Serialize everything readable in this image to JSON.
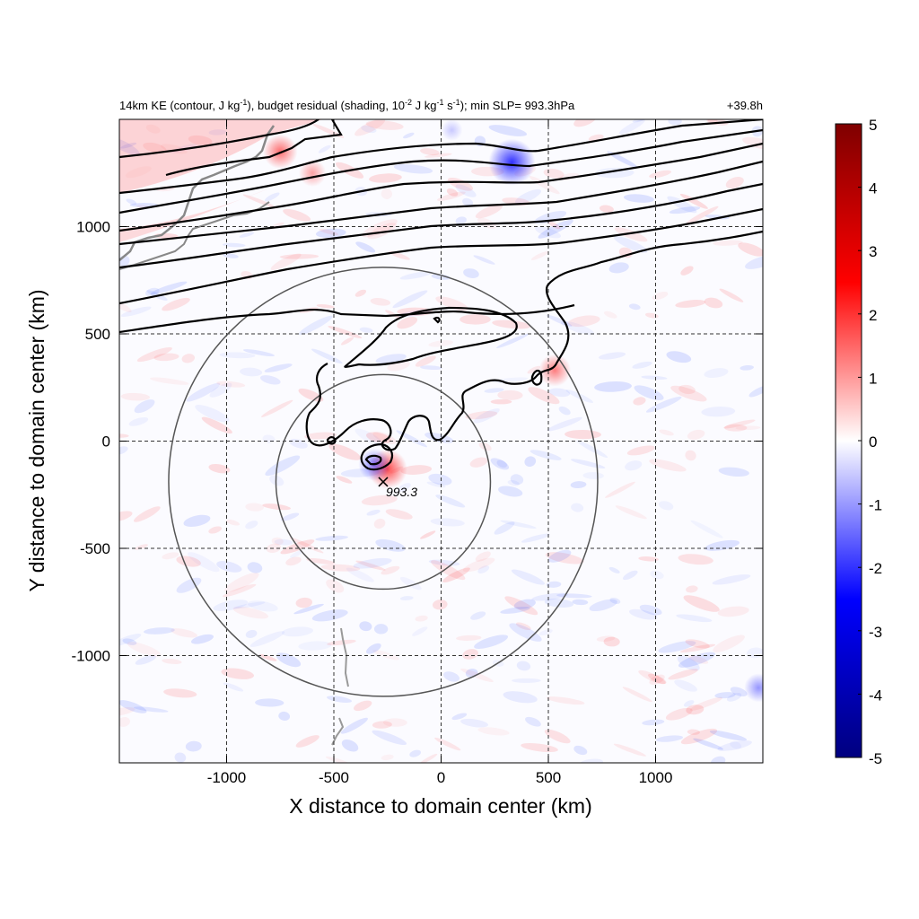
{
  "title": {
    "left_parts": [
      "14km KE (contour, J kg",
      "-1",
      "), budget residual (shading, 10",
      "-2",
      " J kg",
      "-1",
      " s",
      "-1",
      "); min SLP= 993.3hPa"
    ],
    "right": "+39.8h"
  },
  "chart_data": {
    "type": "heatmap",
    "xlabel": "X distance to domain center (km)",
    "ylabel": "Y distance to domain center (km)",
    "xlim": [
      -1500,
      1500
    ],
    "ylim": [
      -1500,
      1500
    ],
    "x_ticks": [
      -1000,
      -500,
      0,
      500,
      1000
    ],
    "y_ticks": [
      1000,
      500,
      0,
      -500,
      -1000
    ],
    "x_tick_labels": [
      "-1000",
      "-500",
      "0",
      "500",
      "1000"
    ],
    "y_tick_labels": [
      "1000",
      "500",
      "0",
      "-500",
      "-1000"
    ],
    "grid": "dashed",
    "colorbar": {
      "range": [
        -5,
        5
      ],
      "ticks": [
        "5",
        "4",
        "3",
        "2",
        "1",
        "0",
        "-1",
        "-2",
        "-3",
        "-4",
        "-5"
      ],
      "tick_values": [
        5,
        4,
        3,
        2,
        1,
        0,
        -1,
        -2,
        -3,
        -4,
        -5
      ],
      "colors": {
        "min": "#00007f",
        "mid_low": "#0000ff",
        "zero": "#ffffff",
        "mid_high": "#ff0000",
        "max": "#7f0000"
      }
    },
    "storm_center": {
      "x": -270,
      "y": -190,
      "label": "993.3"
    },
    "range_rings_km": [
      500,
      1000
    ],
    "residual_highlights": [
      {
        "x": -750,
        "y": 1350,
        "value": 2.8
      },
      {
        "x": -600,
        "y": 1250,
        "value": 1.8
      },
      {
        "x": -250,
        "y": -130,
        "value": 3.5
      },
      {
        "x": -310,
        "y": -110,
        "value": -2.5
      },
      {
        "x": 330,
        "y": 1300,
        "value": -4.5
      },
      {
        "x": 530,
        "y": 330,
        "value": 2.5
      },
      {
        "x": 1480,
        "y": -1150,
        "value": -2.0
      },
      {
        "x": 50,
        "y": 1450,
        "value": -1.0
      }
    ],
    "ke_contour_lines_y_at_left": [
      1470,
      1320,
      1200,
      1100,
      1000,
      900,
      780,
      650,
      500
    ],
    "ke_contour_lines_y_at_right": [
      1500,
      1460,
      1400,
      1340,
      1280,
      1220,
      1150,
      1050,
      970
    ]
  }
}
